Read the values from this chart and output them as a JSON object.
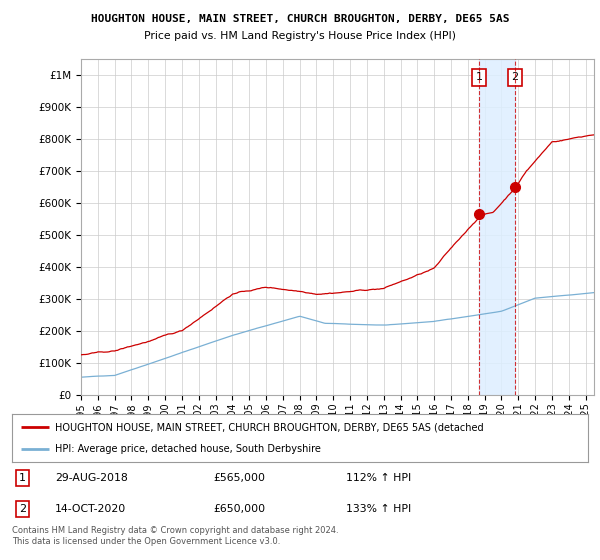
{
  "title": "HOUGHTON HOUSE, MAIN STREET, CHURCH BROUGHTON, DERBY, DE65 5AS",
  "subtitle": "Price paid vs. HM Land Registry's House Price Index (HPI)",
  "ylabel_ticks": [
    "£0",
    "£100K",
    "£200K",
    "£300K",
    "£400K",
    "£500K",
    "£600K",
    "£700K",
    "£800K",
    "£900K",
    "£1M"
  ],
  "ytick_values": [
    0,
    100000,
    200000,
    300000,
    400000,
    500000,
    600000,
    700000,
    800000,
    900000,
    1000000
  ],
  "ylim": [
    0,
    1050000
  ],
  "xlim_start": 1995.0,
  "xlim_end": 2025.5,
  "red_line_color": "#cc0000",
  "blue_line_color": "#7ab0d4",
  "highlight_box_color": "#ddeeff",
  "sale1_x": 2018.66,
  "sale1_y": 565000,
  "sale2_x": 2020.79,
  "sale2_y": 650000,
  "sale1_label": "1",
  "sale2_label": "2",
  "legend_line1": "HOUGHTON HOUSE, MAIN STREET, CHURCH BROUGHTON, DERBY, DE65 5AS (detached",
  "legend_line2": "HPI: Average price, detached house, South Derbyshire",
  "annotation1": "29-AUG-2018",
  "annotation1_price": "£565,000",
  "annotation1_hpi": "112% ↑ HPI",
  "annotation2": "14-OCT-2020",
  "annotation2_price": "£650,000",
  "annotation2_hpi": "133% ↑ HPI",
  "footer": "Contains HM Land Registry data © Crown copyright and database right 2024.\nThis data is licensed under the Open Government Licence v3.0.",
  "background_color": "#ffffff",
  "grid_color": "#cccccc"
}
